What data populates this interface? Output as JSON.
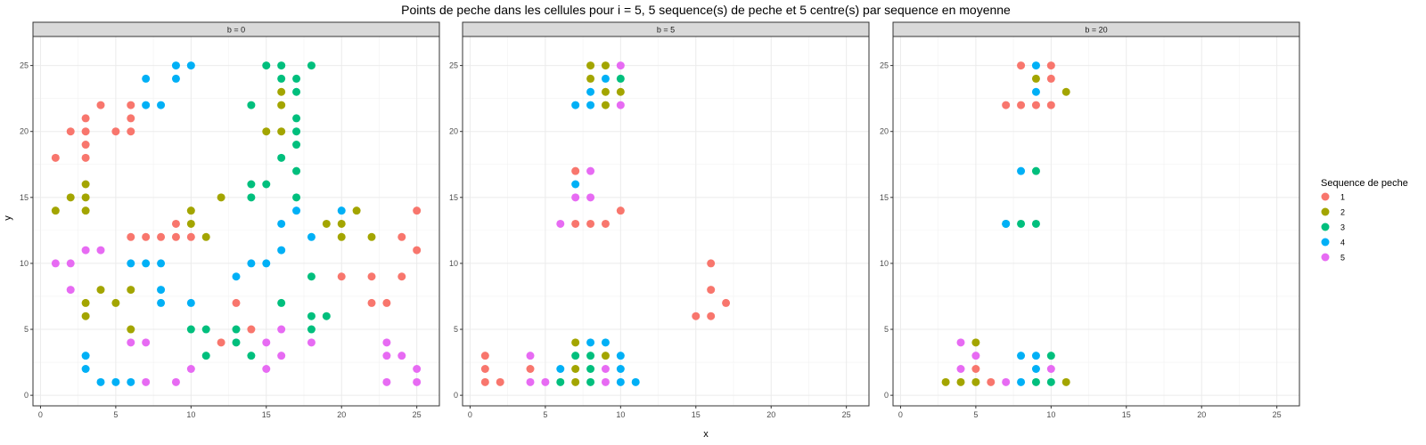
{
  "chart_data": {
    "type": "scatter",
    "title": "Points de peche dans les cellules pour i = 5, 5 sequence(s) de peche et 5 centre(s) par sequence en moyenne",
    "xlabel": "x",
    "ylabel": "y",
    "xlim": [
      -0.5,
      26.5
    ],
    "ylim": [
      -0.8,
      27.2
    ],
    "x_ticks": [
      "0",
      "5",
      "10",
      "15",
      "20",
      "25"
    ],
    "y_ticks": [
      "0",
      "5",
      "10",
      "15",
      "20",
      "25"
    ],
    "grid": true,
    "legend": {
      "title": "Sequence de peche",
      "position": "right",
      "entries": [
        {
          "label": "1",
          "color": "#F8766D"
        },
        {
          "label": "2",
          "color": "#A3A500"
        },
        {
          "label": "3",
          "color": "#00BF7D"
        },
        {
          "label": "4",
          "color": "#00B0F6"
        },
        {
          "label": "5",
          "color": "#E76BF3"
        }
      ]
    },
    "panels": [
      {
        "strip": "b = 0",
        "points": [
          {
            "x": 1,
            "y": 18,
            "s": 1
          },
          {
            "x": 2,
            "y": 20,
            "s": 1
          },
          {
            "x": 3,
            "y": 21,
            "s": 1
          },
          {
            "x": 3,
            "y": 20,
            "s": 1
          },
          {
            "x": 3,
            "y": 19,
            "s": 1
          },
          {
            "x": 3,
            "y": 18,
            "s": 1
          },
          {
            "x": 4,
            "y": 22,
            "s": 1
          },
          {
            "x": 5,
            "y": 20,
            "s": 1
          },
          {
            "x": 6,
            "y": 22,
            "s": 1
          },
          {
            "x": 6,
            "y": 21,
            "s": 1
          },
          {
            "x": 6,
            "y": 20,
            "s": 1
          },
          {
            "x": 6,
            "y": 12,
            "s": 1
          },
          {
            "x": 7,
            "y": 12,
            "s": 1
          },
          {
            "x": 8,
            "y": 12,
            "s": 1
          },
          {
            "x": 9,
            "y": 13,
            "s": 1
          },
          {
            "x": 9,
            "y": 12,
            "s": 1
          },
          {
            "x": 10,
            "y": 12,
            "s": 1
          },
          {
            "x": 12,
            "y": 4,
            "s": 1
          },
          {
            "x": 13,
            "y": 7,
            "s": 1
          },
          {
            "x": 14,
            "y": 5,
            "s": 1
          },
          {
            "x": 20,
            "y": 9,
            "s": 1
          },
          {
            "x": 22,
            "y": 9,
            "s": 1
          },
          {
            "x": 22,
            "y": 7,
            "s": 1
          },
          {
            "x": 23,
            "y": 7,
            "s": 1
          },
          {
            "x": 24,
            "y": 12,
            "s": 1
          },
          {
            "x": 24,
            "y": 9,
            "s": 1
          },
          {
            "x": 25,
            "y": 14,
            "s": 1
          },
          {
            "x": 25,
            "y": 11,
            "s": 1
          },
          {
            "x": 1,
            "y": 14,
            "s": 2
          },
          {
            "x": 2,
            "y": 15,
            "s": 2
          },
          {
            "x": 3,
            "y": 16,
            "s": 2
          },
          {
            "x": 3,
            "y": 15,
            "s": 2
          },
          {
            "x": 3,
            "y": 14,
            "s": 2
          },
          {
            "x": 3,
            "y": 7,
            "s": 2
          },
          {
            "x": 3,
            "y": 6,
            "s": 2
          },
          {
            "x": 4,
            "y": 8,
            "s": 2
          },
          {
            "x": 5,
            "y": 7,
            "s": 2
          },
          {
            "x": 6,
            "y": 8,
            "s": 2
          },
          {
            "x": 6,
            "y": 5,
            "s": 2
          },
          {
            "x": 10,
            "y": 14,
            "s": 2
          },
          {
            "x": 10,
            "y": 13,
            "s": 2
          },
          {
            "x": 11,
            "y": 12,
            "s": 2
          },
          {
            "x": 12,
            "y": 15,
            "s": 2
          },
          {
            "x": 15,
            "y": 20,
            "s": 2
          },
          {
            "x": 16,
            "y": 23,
            "s": 2
          },
          {
            "x": 16,
            "y": 22,
            "s": 2
          },
          {
            "x": 16,
            "y": 20,
            "s": 2
          },
          {
            "x": 19,
            "y": 13,
            "s": 2
          },
          {
            "x": 20,
            "y": 13,
            "s": 2
          },
          {
            "x": 20,
            "y": 12,
            "s": 2
          },
          {
            "x": 21,
            "y": 14,
            "s": 2
          },
          {
            "x": 22,
            "y": 12,
            "s": 2
          },
          {
            "x": 10,
            "y": 5,
            "s": 3
          },
          {
            "x": 11,
            "y": 5,
            "s": 3
          },
          {
            "x": 11,
            "y": 3,
            "s": 3
          },
          {
            "x": 13,
            "y": 5,
            "s": 3
          },
          {
            "x": 13,
            "y": 4,
            "s": 3
          },
          {
            "x": 14,
            "y": 22,
            "s": 3
          },
          {
            "x": 14,
            "y": 16,
            "s": 3
          },
          {
            "x": 14,
            "y": 15,
            "s": 3
          },
          {
            "x": 14,
            "y": 3,
            "s": 3
          },
          {
            "x": 15,
            "y": 25,
            "s": 3
          },
          {
            "x": 15,
            "y": 16,
            "s": 3
          },
          {
            "x": 16,
            "y": 25,
            "s": 3
          },
          {
            "x": 16,
            "y": 24,
            "s": 3
          },
          {
            "x": 16,
            "y": 18,
            "s": 3
          },
          {
            "x": 16,
            "y": 7,
            "s": 3
          },
          {
            "x": 17,
            "y": 24,
            "s": 3
          },
          {
            "x": 17,
            "y": 23,
            "s": 3
          },
          {
            "x": 17,
            "y": 21,
            "s": 3
          },
          {
            "x": 17,
            "y": 20,
            "s": 3
          },
          {
            "x": 17,
            "y": 19,
            "s": 3
          },
          {
            "x": 17,
            "y": 17,
            "s": 3
          },
          {
            "x": 17,
            "y": 15,
            "s": 3
          },
          {
            "x": 18,
            "y": 25,
            "s": 3
          },
          {
            "x": 18,
            "y": 9,
            "s": 3
          },
          {
            "x": 18,
            "y": 6,
            "s": 3
          },
          {
            "x": 18,
            "y": 5,
            "s": 3
          },
          {
            "x": 19,
            "y": 6,
            "s": 3
          },
          {
            "x": 3,
            "y": 3,
            "s": 4
          },
          {
            "x": 3,
            "y": 2,
            "s": 4
          },
          {
            "x": 4,
            "y": 1,
            "s": 4
          },
          {
            "x": 5,
            "y": 1,
            "s": 4
          },
          {
            "x": 6,
            "y": 10,
            "s": 4
          },
          {
            "x": 6,
            "y": 1,
            "s": 4
          },
          {
            "x": 7,
            "y": 24,
            "s": 4
          },
          {
            "x": 7,
            "y": 22,
            "s": 4
          },
          {
            "x": 7,
            "y": 10,
            "s": 4
          },
          {
            "x": 8,
            "y": 22,
            "s": 4
          },
          {
            "x": 8,
            "y": 10,
            "s": 4
          },
          {
            "x": 8,
            "y": 8,
            "s": 4
          },
          {
            "x": 8,
            "y": 7,
            "s": 4
          },
          {
            "x": 9,
            "y": 25,
            "s": 4
          },
          {
            "x": 9,
            "y": 24,
            "s": 4
          },
          {
            "x": 10,
            "y": 25,
            "s": 4
          },
          {
            "x": 10,
            "y": 7,
            "s": 4
          },
          {
            "x": 13,
            "y": 9,
            "s": 4
          },
          {
            "x": 14,
            "y": 10,
            "s": 4
          },
          {
            "x": 15,
            "y": 10,
            "s": 4
          },
          {
            "x": 16,
            "y": 13,
            "s": 4
          },
          {
            "x": 16,
            "y": 11,
            "s": 4
          },
          {
            "x": 17,
            "y": 14,
            "s": 4
          },
          {
            "x": 18,
            "y": 12,
            "s": 4
          },
          {
            "x": 20,
            "y": 14,
            "s": 4
          },
          {
            "x": 1,
            "y": 10,
            "s": 5
          },
          {
            "x": 2,
            "y": 10,
            "s": 5
          },
          {
            "x": 2,
            "y": 8,
            "s": 5
          },
          {
            "x": 3,
            "y": 11,
            "s": 5
          },
          {
            "x": 4,
            "y": 11,
            "s": 5
          },
          {
            "x": 6,
            "y": 4,
            "s": 5
          },
          {
            "x": 7,
            "y": 4,
            "s": 5
          },
          {
            "x": 7,
            "y": 1,
            "s": 5
          },
          {
            "x": 9,
            "y": 1,
            "s": 5
          },
          {
            "x": 10,
            "y": 2,
            "s": 5
          },
          {
            "x": 15,
            "y": 4,
            "s": 5
          },
          {
            "x": 15,
            "y": 2,
            "s": 5
          },
          {
            "x": 16,
            "y": 5,
            "s": 5
          },
          {
            "x": 16,
            "y": 3,
            "s": 5
          },
          {
            "x": 18,
            "y": 4,
            "s": 5
          },
          {
            "x": 23,
            "y": 4,
            "s": 5
          },
          {
            "x": 23,
            "y": 3,
            "s": 5
          },
          {
            "x": 23,
            "y": 1,
            "s": 5
          },
          {
            "x": 24,
            "y": 3,
            "s": 5
          },
          {
            "x": 25,
            "y": 2,
            "s": 5
          },
          {
            "x": 25,
            "y": 1,
            "s": 5
          }
        ]
      },
      {
        "strip": "b = 5",
        "points": [
          {
            "x": 1,
            "y": 3,
            "s": 1
          },
          {
            "x": 1,
            "y": 2,
            "s": 1
          },
          {
            "x": 1,
            "y": 1,
            "s": 1
          },
          {
            "x": 2,
            "y": 1,
            "s": 1
          },
          {
            "x": 4,
            "y": 2,
            "s": 1
          },
          {
            "x": 7,
            "y": 17,
            "s": 1
          },
          {
            "x": 7,
            "y": 13,
            "s": 1
          },
          {
            "x": 8,
            "y": 13,
            "s": 1
          },
          {
            "x": 9,
            "y": 13,
            "s": 1
          },
          {
            "x": 10,
            "y": 14,
            "s": 1
          },
          {
            "x": 15,
            "y": 6,
            "s": 1
          },
          {
            "x": 16,
            "y": 10,
            "s": 1
          },
          {
            "x": 16,
            "y": 8,
            "s": 1
          },
          {
            "x": 16,
            "y": 6,
            "s": 1
          },
          {
            "x": 17,
            "y": 7,
            "s": 1
          },
          {
            "x": 7,
            "y": 4,
            "s": 2
          },
          {
            "x": 7,
            "y": 2,
            "s": 2
          },
          {
            "x": 7,
            "y": 1,
            "s": 2
          },
          {
            "x": 8,
            "y": 25,
            "s": 2
          },
          {
            "x": 8,
            "y": 24,
            "s": 2
          },
          {
            "x": 9,
            "y": 25,
            "s": 2
          },
          {
            "x": 9,
            "y": 23,
            "s": 2
          },
          {
            "x": 9,
            "y": 22,
            "s": 2
          },
          {
            "x": 9,
            "y": 3,
            "s": 2
          },
          {
            "x": 10,
            "y": 23,
            "s": 2
          },
          {
            "x": 6,
            "y": 1,
            "s": 3
          },
          {
            "x": 7,
            "y": 3,
            "s": 3
          },
          {
            "x": 8,
            "y": 3,
            "s": 3
          },
          {
            "x": 8,
            "y": 2,
            "s": 3
          },
          {
            "x": 8,
            "y": 1,
            "s": 3
          },
          {
            "x": 10,
            "y": 24,
            "s": 3
          },
          {
            "x": 6,
            "y": 2,
            "s": 4
          },
          {
            "x": 7,
            "y": 22,
            "s": 4
          },
          {
            "x": 7,
            "y": 16,
            "s": 4
          },
          {
            "x": 8,
            "y": 23,
            "s": 4
          },
          {
            "x": 8,
            "y": 22,
            "s": 4
          },
          {
            "x": 8,
            "y": 4,
            "s": 4
          },
          {
            "x": 9,
            "y": 24,
            "s": 4
          },
          {
            "x": 9,
            "y": 4,
            "s": 4
          },
          {
            "x": 10,
            "y": 3,
            "s": 4
          },
          {
            "x": 10,
            "y": 2,
            "s": 4
          },
          {
            "x": 10,
            "y": 1,
            "s": 4
          },
          {
            "x": 11,
            "y": 1,
            "s": 4
          },
          {
            "x": 4,
            "y": 3,
            "s": 5
          },
          {
            "x": 4,
            "y": 1,
            "s": 5
          },
          {
            "x": 5,
            "y": 1,
            "s": 5
          },
          {
            "x": 6,
            "y": 13,
            "s": 5
          },
          {
            "x": 7,
            "y": 15,
            "s": 5
          },
          {
            "x": 8,
            "y": 17,
            "s": 5
          },
          {
            "x": 8,
            "y": 15,
            "s": 5
          },
          {
            "x": 9,
            "y": 2,
            "s": 5
          },
          {
            "x": 9,
            "y": 1,
            "s": 5
          },
          {
            "x": 10,
            "y": 25,
            "s": 5
          },
          {
            "x": 10,
            "y": 22,
            "s": 5
          }
        ]
      },
      {
        "strip": "b = 20",
        "points": [
          {
            "x": 5,
            "y": 2,
            "s": 1
          },
          {
            "x": 6,
            "y": 1,
            "s": 1
          },
          {
            "x": 7,
            "y": 22,
            "s": 1
          },
          {
            "x": 8,
            "y": 25,
            "s": 1
          },
          {
            "x": 8,
            "y": 22,
            "s": 1
          },
          {
            "x": 9,
            "y": 22,
            "s": 1
          },
          {
            "x": 10,
            "y": 25,
            "s": 1
          },
          {
            "x": 10,
            "y": 24,
            "s": 1
          },
          {
            "x": 10,
            "y": 22,
            "s": 1
          },
          {
            "x": 3,
            "y": 1,
            "s": 2
          },
          {
            "x": 4,
            "y": 1,
            "s": 2
          },
          {
            "x": 5,
            "y": 4,
            "s": 2
          },
          {
            "x": 5,
            "y": 1,
            "s": 2
          },
          {
            "x": 9,
            "y": 24,
            "s": 2
          },
          {
            "x": 11,
            "y": 23,
            "s": 2
          },
          {
            "x": 11,
            "y": 1,
            "s": 2
          },
          {
            "x": 7,
            "y": 13,
            "s": 3
          },
          {
            "x": 8,
            "y": 13,
            "s": 3
          },
          {
            "x": 9,
            "y": 17,
            "s": 3
          },
          {
            "x": 9,
            "y": 13,
            "s": 3
          },
          {
            "x": 9,
            "y": 1,
            "s": 3
          },
          {
            "x": 10,
            "y": 3,
            "s": 3
          },
          {
            "x": 10,
            "y": 1,
            "s": 3
          },
          {
            "x": 7,
            "y": 13,
            "s": 4
          },
          {
            "x": 8,
            "y": 17,
            "s": 4
          },
          {
            "x": 8,
            "y": 3,
            "s": 4
          },
          {
            "x": 8,
            "y": 1,
            "s": 4
          },
          {
            "x": 9,
            "y": 25,
            "s": 4
          },
          {
            "x": 9,
            "y": 23,
            "s": 4
          },
          {
            "x": 9,
            "y": 3,
            "s": 4
          },
          {
            "x": 9,
            "y": 2,
            "s": 4
          },
          {
            "x": 4,
            "y": 4,
            "s": 5
          },
          {
            "x": 4,
            "y": 2,
            "s": 5
          },
          {
            "x": 5,
            "y": 3,
            "s": 5
          },
          {
            "x": 7,
            "y": 1,
            "s": 5
          },
          {
            "x": 10,
            "y": 2,
            "s": 5
          }
        ]
      }
    ]
  }
}
